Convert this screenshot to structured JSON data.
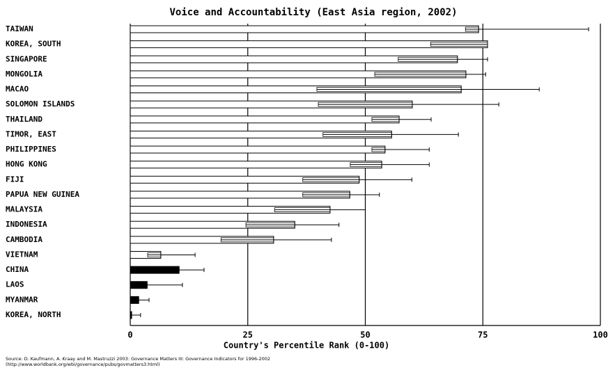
{
  "chart_data": {
    "type": "bar",
    "orientation": "horizontal",
    "title": "Voice and Accountability (East Asia region, 2002)",
    "x_label": "Country's Percentile Rank (0-100)",
    "source": "Source: D. Kaufmann, A. Kraay and M. Mastruzzi 2003: Governance Matters III: Governance Indicators for 1996-2002",
    "source_url": "(http://www.worldbank.org/wbi/governance/pubs/govmatters3.html)",
    "categories": [
      "TAIWAN",
      "KOREA, SOUTH",
      "SINGAPORE",
      "MONGOLIA",
      "MACAO",
      "SOLOMON ISLANDS",
      "THAILAND",
      "TIMOR, EAST",
      "PHILIPPINES",
      "HONG KONG",
      "FIJI",
      "PAPUA NEW GUINEA",
      "MALAYSIA",
      "INDONESIA",
      "CAMBODIA",
      "VIETNAM",
      "CHINA",
      "LAOS",
      "MYANMAR",
      "KOREA, NORTH"
    ],
    "values": [
      74.1,
      76,
      69.6,
      71.4,
      70.4,
      60,
      57.2,
      55.6,
      54.2,
      53.5,
      48.7,
      46.7,
      42.5,
      35,
      30.5,
      6.5,
      10.4,
      3.6,
      1.8,
      0.3
    ],
    "lower": [
      71.3,
      63.9,
      57,
      52,
      39.7,
      40,
      51.4,
      41,
      51.4,
      46.8,
      36.7,
      36.7,
      30.7,
      24.6,
      19.3,
      3.7,
      4,
      1,
      0.5,
      0
    ],
    "upper": [
      97.5,
      76,
      76,
      75.6,
      87,
      78.4,
      64,
      69.8,
      63.6,
      63.6,
      59.9,
      53,
      50,
      44.4,
      42.8,
      13.8,
      15.7,
      11.1,
      4,
      2.2
    ],
    "colors": [
      "#ffffff",
      "#ffffff",
      "#ffffff",
      "#ffffff",
      "#ffffff",
      "#ffffff",
      "#ffffff",
      "#ffffff",
      "#ffffff",
      "#ffffff",
      "#ffffff",
      "#ffffff",
      "#ffffff",
      "#ffffff",
      "#ffffff",
      "#ffffff",
      "#000000",
      "#000000",
      "#000000",
      "#000000"
    ],
    "xlim": [
      0,
      100
    ],
    "xticks": [
      0,
      25,
      50,
      75,
      100
    ],
    "grid": true
  }
}
